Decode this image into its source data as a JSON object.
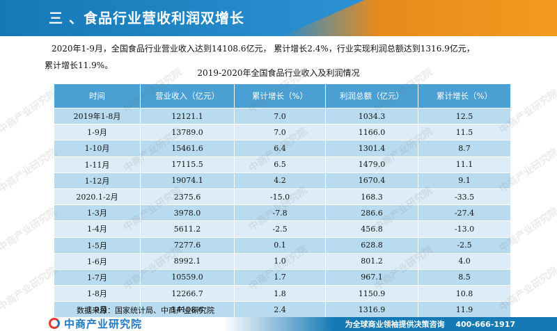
{
  "header": {
    "title": "三 、食品行业营收利润双增长",
    "bar_color": "#1579b6",
    "accent_color": "#f39a1e"
  },
  "intro": {
    "line1": "2020年1-9月，全国食品行业营业收入达到14108.6亿元， 累计增长2.4%，行业实现利润总额达到1316.9亿元，",
    "line2": "累计增长11.9%。"
  },
  "table": {
    "title": "2019-2020年全国食品行业收入及利润情况",
    "headers": [
      "时间",
      "营业收入（亿元）",
      "累计增长（%）",
      "利润总额（亿元）",
      "累计增长（%）"
    ],
    "rows": [
      [
        "2019年1-8月",
        "12121.1",
        "7.0",
        "1034.3",
        "12.5"
      ],
      [
        "1-9月",
        "13789.0",
        "7.0",
        "1166.0",
        "11.5"
      ],
      [
        "1-10月",
        "15461.6",
        "6.4",
        "1301.4",
        "8.7"
      ],
      [
        "1-11月",
        "17115.5",
        "6.5",
        "1479.0",
        "11.1"
      ],
      [
        "1-12月",
        "19074.1",
        "4.2",
        "1670.4",
        "9.1"
      ],
      [
        "2020.1-2月",
        "2375.6",
        "-15.0",
        "168.3",
        "-33.5"
      ],
      [
        "1-3月",
        "3978.0",
        "-7.8",
        "286.6",
        "-27.4"
      ],
      [
        "1-4月",
        "5611.2",
        "-2.5",
        "456.8",
        "-13.0"
      ],
      [
        "1-5月",
        "7277.6",
        "0.1",
        "628.8",
        "-2.5"
      ],
      [
        "1-6月",
        "8992.1",
        "1.0",
        "801.2",
        "4.0"
      ],
      [
        "1-7月",
        "10559.0",
        "1.7",
        "967.1",
        "8.5"
      ],
      [
        "1-8月",
        "12266.7",
        "1.8",
        "1150.9",
        "10.8"
      ],
      [
        "1-9月",
        "14108.6",
        "2.4",
        "1316.9",
        "11.9"
      ]
    ],
    "header_color": "#4a9fd3",
    "row_color_odd": "#b9dbef",
    "row_color_even": "#dcedf7"
  },
  "source": "数据来源：国家统计局、中商产业研究院",
  "footer": {
    "logo_text": "中商产业研究院",
    "slogan": "为全球商业领袖提供决策咨询",
    "phone": "400-666-1917"
  },
  "watermark_text": "中商产业研究院"
}
